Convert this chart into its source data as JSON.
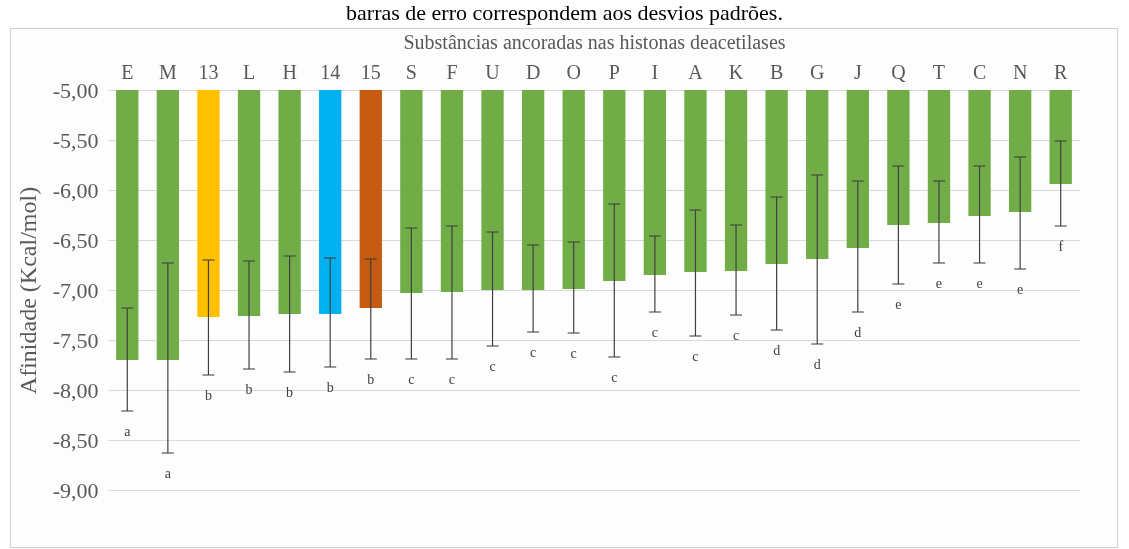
{
  "chart_data": {
    "type": "bar",
    "xlabel": "Substâncias ancoradas nas histonas deacetilases",
    "ylabel": "Afinidade (Kcal/mol)",
    "categories": [
      "E",
      "M",
      "13",
      "L",
      "H",
      "14",
      "15",
      "S",
      "F",
      "U",
      "D",
      "O",
      "P",
      "I",
      "A",
      "K",
      "B",
      "G",
      "J",
      "Q",
      "T",
      "C",
      "N",
      "R"
    ],
    "values": [
      -7.7,
      -7.7,
      -7.27,
      -7.26,
      -7.24,
      -7.24,
      -7.18,
      -7.03,
      -7.02,
      -7.0,
      -7.0,
      -6.99,
      -6.91,
      -6.85,
      -6.82,
      -6.81,
      -6.74,
      -6.69,
      -6.58,
      -6.35,
      -6.33,
      -6.26,
      -6.22,
      -5.94
    ],
    "colors": [
      "#70ad47",
      "#70ad47",
      "#ffc000",
      "#70ad47",
      "#70ad47",
      "#00b0f0",
      "#c55a11",
      "#70ad47",
      "#70ad47",
      "#70ad47",
      "#70ad47",
      "#70ad47",
      "#70ad47",
      "#70ad47",
      "#70ad47",
      "#70ad47",
      "#70ad47",
      "#70ad47",
      "#70ad47",
      "#70ad47",
      "#70ad47",
      "#70ad47",
      "#70ad47",
      "#70ad47"
    ],
    "errors": [
      [
        -8.21,
        -7.18
      ],
      [
        -8.63,
        -6.73
      ],
      [
        -7.85,
        -6.7
      ],
      [
        -7.79,
        -6.71
      ],
      [
        -7.82,
        -6.66
      ],
      [
        -7.77,
        -6.68
      ],
      [
        -7.69,
        -6.69
      ],
      [
        -7.69,
        -6.38
      ],
      [
        -7.69,
        -6.36
      ],
      [
        -7.56,
        -6.42
      ],
      [
        -7.42,
        -6.55
      ],
      [
        -7.43,
        -6.52
      ],
      [
        -7.67,
        -6.14
      ],
      [
        -7.22,
        -6.46
      ],
      [
        -7.46,
        -6.2
      ],
      [
        -7.25,
        -6.35
      ],
      [
        -7.4,
        -6.07
      ],
      [
        -7.54,
        -5.85
      ],
      [
        -7.22,
        -5.91
      ],
      [
        -6.94,
        -5.76
      ],
      [
        -6.73,
        -5.91
      ],
      [
        -6.73,
        -5.76
      ],
      [
        -6.79,
        -5.67
      ],
      [
        -6.36,
        -5.51
      ]
    ],
    "ylim": [
      -9,
      -5
    ],
    "yticks": [
      {
        "value": -9,
        "label": "-9,00"
      },
      {
        "value": -8.5,
        "label": "-8,50"
      },
      {
        "value": -8,
        "label": "-8,00"
      },
      {
        "value": -7.5,
        "label": "-7,50"
      },
      {
        "value": -7,
        "label": "-7,00"
      },
      {
        "value": -6.5,
        "label": "-6,50"
      },
      {
        "value": -6,
        "label": "-6,00"
      },
      {
        "value": -5.5,
        "label": "-5,50"
      },
      {
        "value": -5,
        "label": "-5,00"
      }
    ],
    "grid": "y",
    "annotations": [
      "barras de erro correspondem aos desvios padrões.",
      "a",
      "a",
      "b",
      "b",
      "b",
      "b",
      "b",
      "c",
      "c",
      "c",
      "c",
      "c",
      "c",
      "c",
      "c",
      "c",
      "d",
      "d",
      "d",
      "e",
      "e",
      "e",
      "e",
      "f"
    ]
  }
}
